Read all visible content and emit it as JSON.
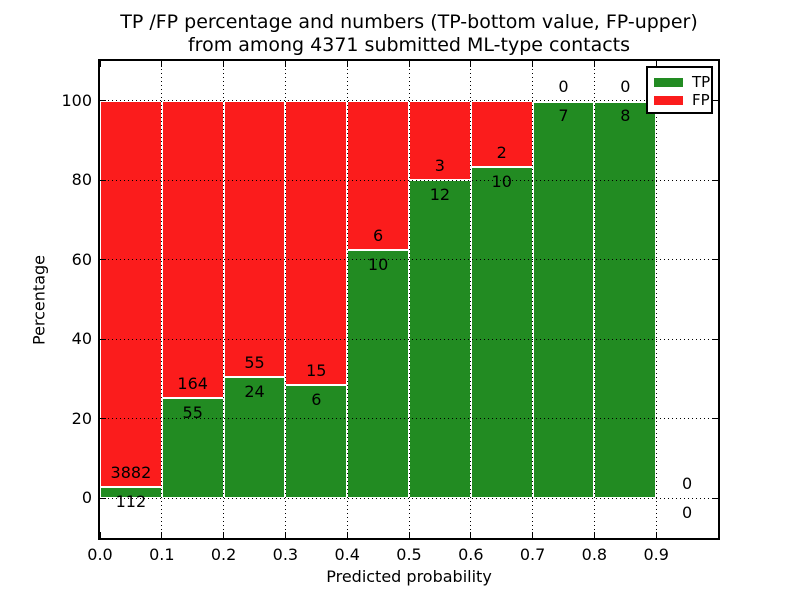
{
  "title": {
    "line1": "TP /FP percentage and numbers (TP-bottom value, FP-upper)",
    "line2": "from among 4371 submitted ML-type contacts"
  },
  "axes": {
    "xlabel": "Predicted probability",
    "ylabel": "Percentage"
  },
  "legend": {
    "position": "upper right",
    "items": [
      {
        "label": "TP",
        "color": "#228B22"
      },
      {
        "label": "FP",
        "color": "#fb1c1c"
      }
    ]
  },
  "chart_data": {
    "type": "bar",
    "stacked": true,
    "normalization": "each bar stacked to 100%, annotated with raw counts (TP below boundary, FP above)",
    "title": "TP /FP percentage and numbers (TP-bottom value, FP-upper) from among 4371 submitted ML-type contacts",
    "xlabel": "Predicted probability",
    "ylabel": "Percentage",
    "xlim": [
      0.0,
      1.0
    ],
    "ylim": [
      -10,
      110
    ],
    "xticks": [
      "0.0",
      "0.1",
      "0.2",
      "0.3",
      "0.4",
      "0.5",
      "0.6",
      "0.7",
      "0.8",
      "0.9"
    ],
    "yticks": [
      0,
      20,
      40,
      60,
      80,
      100
    ],
    "grid": true,
    "total_contacts": 4371,
    "categories": [
      "0.0-0.1",
      "0.1-0.2",
      "0.2-0.3",
      "0.3-0.4",
      "0.4-0.5",
      "0.5-0.6",
      "0.6-0.7",
      "0.7-0.8",
      "0.8-0.9",
      "0.9-1.0"
    ],
    "series": [
      {
        "name": "TP",
        "color": "#228B22",
        "values": [
          112,
          55,
          24,
          6,
          10,
          12,
          10,
          7,
          8,
          0
        ]
      },
      {
        "name": "FP",
        "color": "#fb1c1c",
        "values": [
          3882,
          164,
          55,
          15,
          6,
          3,
          2,
          0,
          0,
          0
        ]
      }
    ],
    "bins": [
      {
        "x0": 0.0,
        "x1": 0.1,
        "tp": 112,
        "fp": 3882
      },
      {
        "x0": 0.1,
        "x1": 0.2,
        "tp": 55,
        "fp": 164
      },
      {
        "x0": 0.2,
        "x1": 0.3,
        "tp": 24,
        "fp": 55
      },
      {
        "x0": 0.3,
        "x1": 0.4,
        "tp": 6,
        "fp": 15
      },
      {
        "x0": 0.4,
        "x1": 0.5,
        "tp": 10,
        "fp": 6
      },
      {
        "x0": 0.5,
        "x1": 0.6,
        "tp": 12,
        "fp": 3
      },
      {
        "x0": 0.6,
        "x1": 0.7,
        "tp": 10,
        "fp": 2
      },
      {
        "x0": 0.7,
        "x1": 0.8,
        "tp": 7,
        "fp": 0
      },
      {
        "x0": 0.8,
        "x1": 0.9,
        "tp": 8,
        "fp": 0
      },
      {
        "x0": 0.9,
        "x1": 1.0,
        "tp": 0,
        "fp": 0
      }
    ],
    "tp_percent": [
      2.8,
      25.1,
      30.4,
      28.6,
      62.5,
      80.0,
      83.3,
      100.0,
      100.0,
      null
    ]
  }
}
